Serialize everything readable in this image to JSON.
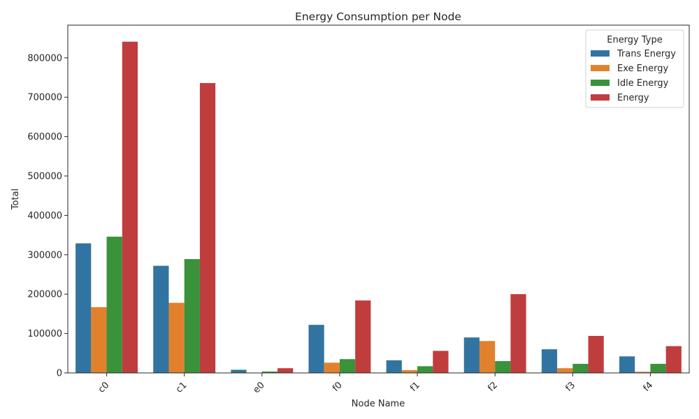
{
  "chart_data": {
    "type": "bar",
    "title": "Energy Consumption per Node",
    "xlabel": "Node Name",
    "ylabel": "Total",
    "categories": [
      "c0",
      "c1",
      "e0",
      "f0",
      "f1",
      "f2",
      "f3",
      "f4"
    ],
    "series": [
      {
        "name": "Trans Energy",
        "color": "#3274a1",
        "values": [
          329000,
          272000,
          8000,
          122000,
          32000,
          90000,
          60000,
          42000
        ]
      },
      {
        "name": "Exe Energy",
        "color": "#e1812c",
        "values": [
          167000,
          178000,
          0,
          26000,
          7000,
          81000,
          12000,
          3000
        ]
      },
      {
        "name": "Idle Energy",
        "color": "#3a923a",
        "values": [
          346000,
          289000,
          3500,
          35000,
          17000,
          30000,
          23000,
          23000
        ]
      },
      {
        "name": "Energy",
        "color": "#c03d3e",
        "values": [
          841000,
          736000,
          12000,
          184000,
          56000,
          200000,
          94000,
          68000
        ]
      }
    ],
    "yticks": [
      "0",
      "100000",
      "200000",
      "300000",
      "400000",
      "500000",
      "600000",
      "700000",
      "800000"
    ],
    "ylim": [
      0,
      883000
    ],
    "legend": {
      "title": "Energy Type",
      "placement": "top-right"
    },
    "grid": false
  }
}
